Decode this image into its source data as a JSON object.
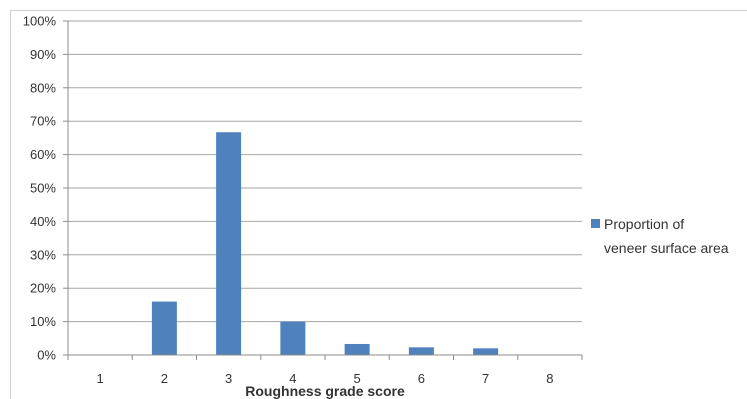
{
  "chart_data": {
    "type": "bar",
    "categories": [
      "1",
      "2",
      "3",
      "4",
      "5",
      "6",
      "7",
      "8"
    ],
    "series": [
      {
        "name": "Proportion of veneer surface area",
        "values": [
          0,
          16,
          66.7,
          10,
          3.3,
          2.3,
          2,
          0
        ],
        "color": "#4f81bd"
      }
    ],
    "y_ticks": [
      "0%",
      "10%",
      "20%",
      "30%",
      "40%",
      "50%",
      "60%",
      "70%",
      "80%",
      "90%",
      "100%"
    ],
    "ylim": [
      0,
      100
    ],
    "xlabel": "Roughness grade score",
    "ylabel": "",
    "grid": true,
    "legend": {
      "position": "right",
      "lines": [
        "Proportion of",
        "veneer surface area"
      ]
    }
  }
}
